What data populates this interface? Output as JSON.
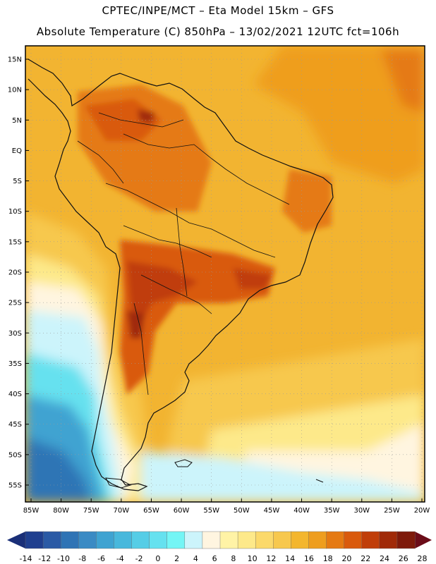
{
  "header": {
    "line1": "CPTEC/INPE/MCT –  Eta Model 15km – GFS",
    "line2": "Absolute Temperature (C) 850hPa – 13/02/2021 12UTC fct=106h"
  },
  "axes": {
    "lat_labels": [
      "15N",
      "10N",
      "5N",
      "EQ",
      "5S",
      "10S",
      "15S",
      "20S",
      "25S",
      "30S",
      "35S",
      "40S",
      "45S",
      "50S",
      "55S"
    ],
    "lon_labels": [
      "85W",
      "80W",
      "75W",
      "70W",
      "65W",
      "60W",
      "55W",
      "50W",
      "45W",
      "40W",
      "35W",
      "30W",
      "25W",
      "20W"
    ]
  },
  "colorbar": {
    "labels": [
      "-14",
      "-12",
      "-10",
      "-8",
      "-6",
      "-4",
      "-2",
      "0",
      "2",
      "4",
      "6",
      "8",
      "10",
      "12",
      "14",
      "16",
      "18",
      "20",
      "22",
      "24",
      "26",
      "28"
    ],
    "colors": [
      "#1f3f8f",
      "#2a5aa5",
      "#2f74b5",
      "#3a8bc4",
      "#3fa3d1",
      "#48b8dc",
      "#56cde6",
      "#66e1ef",
      "#74f5f5",
      "#ccf4fb",
      "#fff5e0",
      "#fff3a6",
      "#fde98a",
      "#fbd96b",
      "#f7c84e",
      "#f3b62e",
      "#ee9e1e",
      "#e57a12",
      "#d95a0c",
      "#c03e09",
      "#a02a08",
      "#7e1a0a"
    ],
    "low_arrow_color": "#1a2f78",
    "high_arrow_color": "#6b0c18"
  },
  "map_colors": {
    "ocean_base": "#f2b431",
    "ocean_warm": "#ef9e1e",
    "ocean_mild": "#f7c84e",
    "ocean_cool": "#fde98a",
    "pale": "#fff5e0",
    "lightblue": "#ccf4fb",
    "cyan": "#66e1ef",
    "blue": "#3fa3d1",
    "darkblue": "#2f74b5",
    "land_warm": "#e57a12",
    "land_hot": "#d95a0c",
    "land_hotter": "#c03e09",
    "land_hottest": "#a02a08",
    "coast": "#111111",
    "grid": "#9a9a9a"
  }
}
